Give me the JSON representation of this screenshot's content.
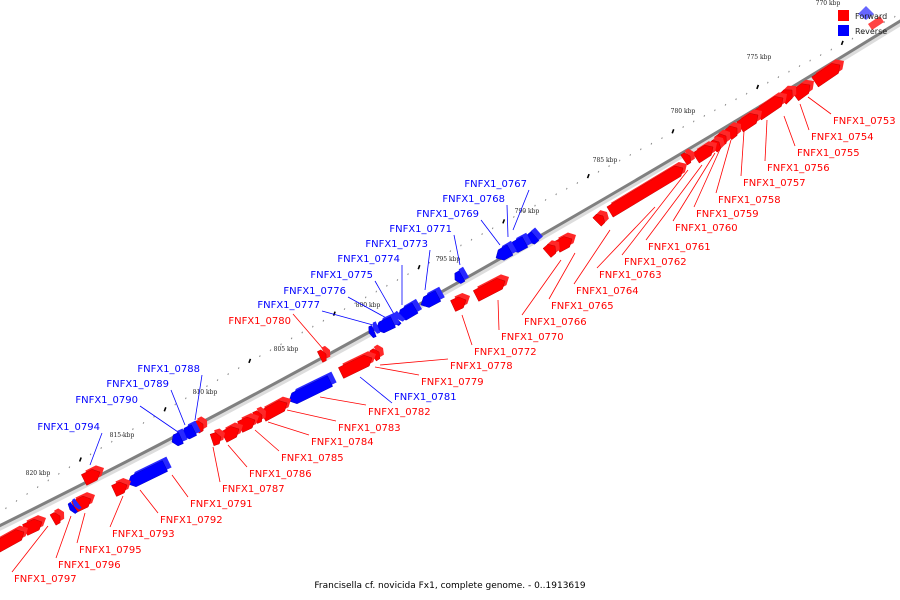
{
  "caption": "Francisella cf. novicida Fx1, complete genome. - 0..1913619",
  "legend": [
    {
      "label": "Forward",
      "color": "#ff0000"
    },
    {
      "label": "Reverse",
      "color": "#0000ff"
    }
  ],
  "colors": {
    "forward": "#ff0000",
    "reverse": "#0000ff",
    "backbone": "#808080"
  },
  "ticks": [
    "770 kbp",
    "775 kbp",
    "780 kbp",
    "785 kbp",
    "790 kbp",
    "795 kbp",
    "800 kbp",
    "805 kbp",
    "810 kbp",
    "815 kbp",
    "820 kbp"
  ],
  "genes": [
    {
      "name": "FNFX1_0753",
      "strand": "forward"
    },
    {
      "name": "FNFX1_0754",
      "strand": "forward"
    },
    {
      "name": "FNFX1_0755",
      "strand": "forward"
    },
    {
      "name": "FNFX1_0756",
      "strand": "forward"
    },
    {
      "name": "FNFX1_0757",
      "strand": "forward"
    },
    {
      "name": "FNFX1_0758",
      "strand": "forward"
    },
    {
      "name": "FNFX1_0759",
      "strand": "forward"
    },
    {
      "name": "FNFX1_0760",
      "strand": "forward"
    },
    {
      "name": "FNFX1_0761",
      "strand": "forward"
    },
    {
      "name": "FNFX1_0762",
      "strand": "forward"
    },
    {
      "name": "FNFX1_0763",
      "strand": "forward"
    },
    {
      "name": "FNFX1_0764",
      "strand": "forward"
    },
    {
      "name": "FNFX1_0765",
      "strand": "forward"
    },
    {
      "name": "FNFX1_0766",
      "strand": "forward"
    },
    {
      "name": "FNFX1_0767",
      "strand": "reverse"
    },
    {
      "name": "FNFX1_0768",
      "strand": "reverse"
    },
    {
      "name": "FNFX1_0769",
      "strand": "reverse"
    },
    {
      "name": "FNFX1_0770",
      "strand": "forward"
    },
    {
      "name": "FNFX1_0771",
      "strand": "reverse"
    },
    {
      "name": "FNFX1_0772",
      "strand": "forward"
    },
    {
      "name": "FNFX1_0773",
      "strand": "reverse"
    },
    {
      "name": "FNFX1_0774",
      "strand": "reverse"
    },
    {
      "name": "FNFX1_0775",
      "strand": "reverse"
    },
    {
      "name": "FNFX1_0776",
      "strand": "reverse"
    },
    {
      "name": "FNFX1_0777",
      "strand": "reverse"
    },
    {
      "name": "FNFX1_0778",
      "strand": "forward"
    },
    {
      "name": "FNFX1_0779",
      "strand": "forward"
    },
    {
      "name": "FNFX1_0780",
      "strand": "forward"
    },
    {
      "name": "FNFX1_0781",
      "strand": "reverse"
    },
    {
      "name": "FNFX1_0782",
      "strand": "forward"
    },
    {
      "name": "FNFX1_0783",
      "strand": "forward"
    },
    {
      "name": "FNFX1_0784",
      "strand": "forward"
    },
    {
      "name": "FNFX1_0785",
      "strand": "forward"
    },
    {
      "name": "FNFX1_0786",
      "strand": "forward"
    },
    {
      "name": "FNFX1_0787",
      "strand": "forward"
    },
    {
      "name": "FNFX1_0788",
      "strand": "reverse"
    },
    {
      "name": "FNFX1_0789",
      "strand": "reverse"
    },
    {
      "name": "FNFX1_0790",
      "strand": "reverse"
    },
    {
      "name": "FNFX1_0791",
      "strand": "forward"
    },
    {
      "name": "FNFX1_0792",
      "strand": "forward"
    },
    {
      "name": "FNFX1_0793",
      "strand": "forward"
    },
    {
      "name": "FNFX1_0794",
      "strand": "reverse"
    },
    {
      "name": "FNFX1_0795",
      "strand": "forward"
    },
    {
      "name": "FNFX1_0796",
      "strand": "forward"
    },
    {
      "name": "FNFX1_0797",
      "strand": "forward"
    }
  ]
}
